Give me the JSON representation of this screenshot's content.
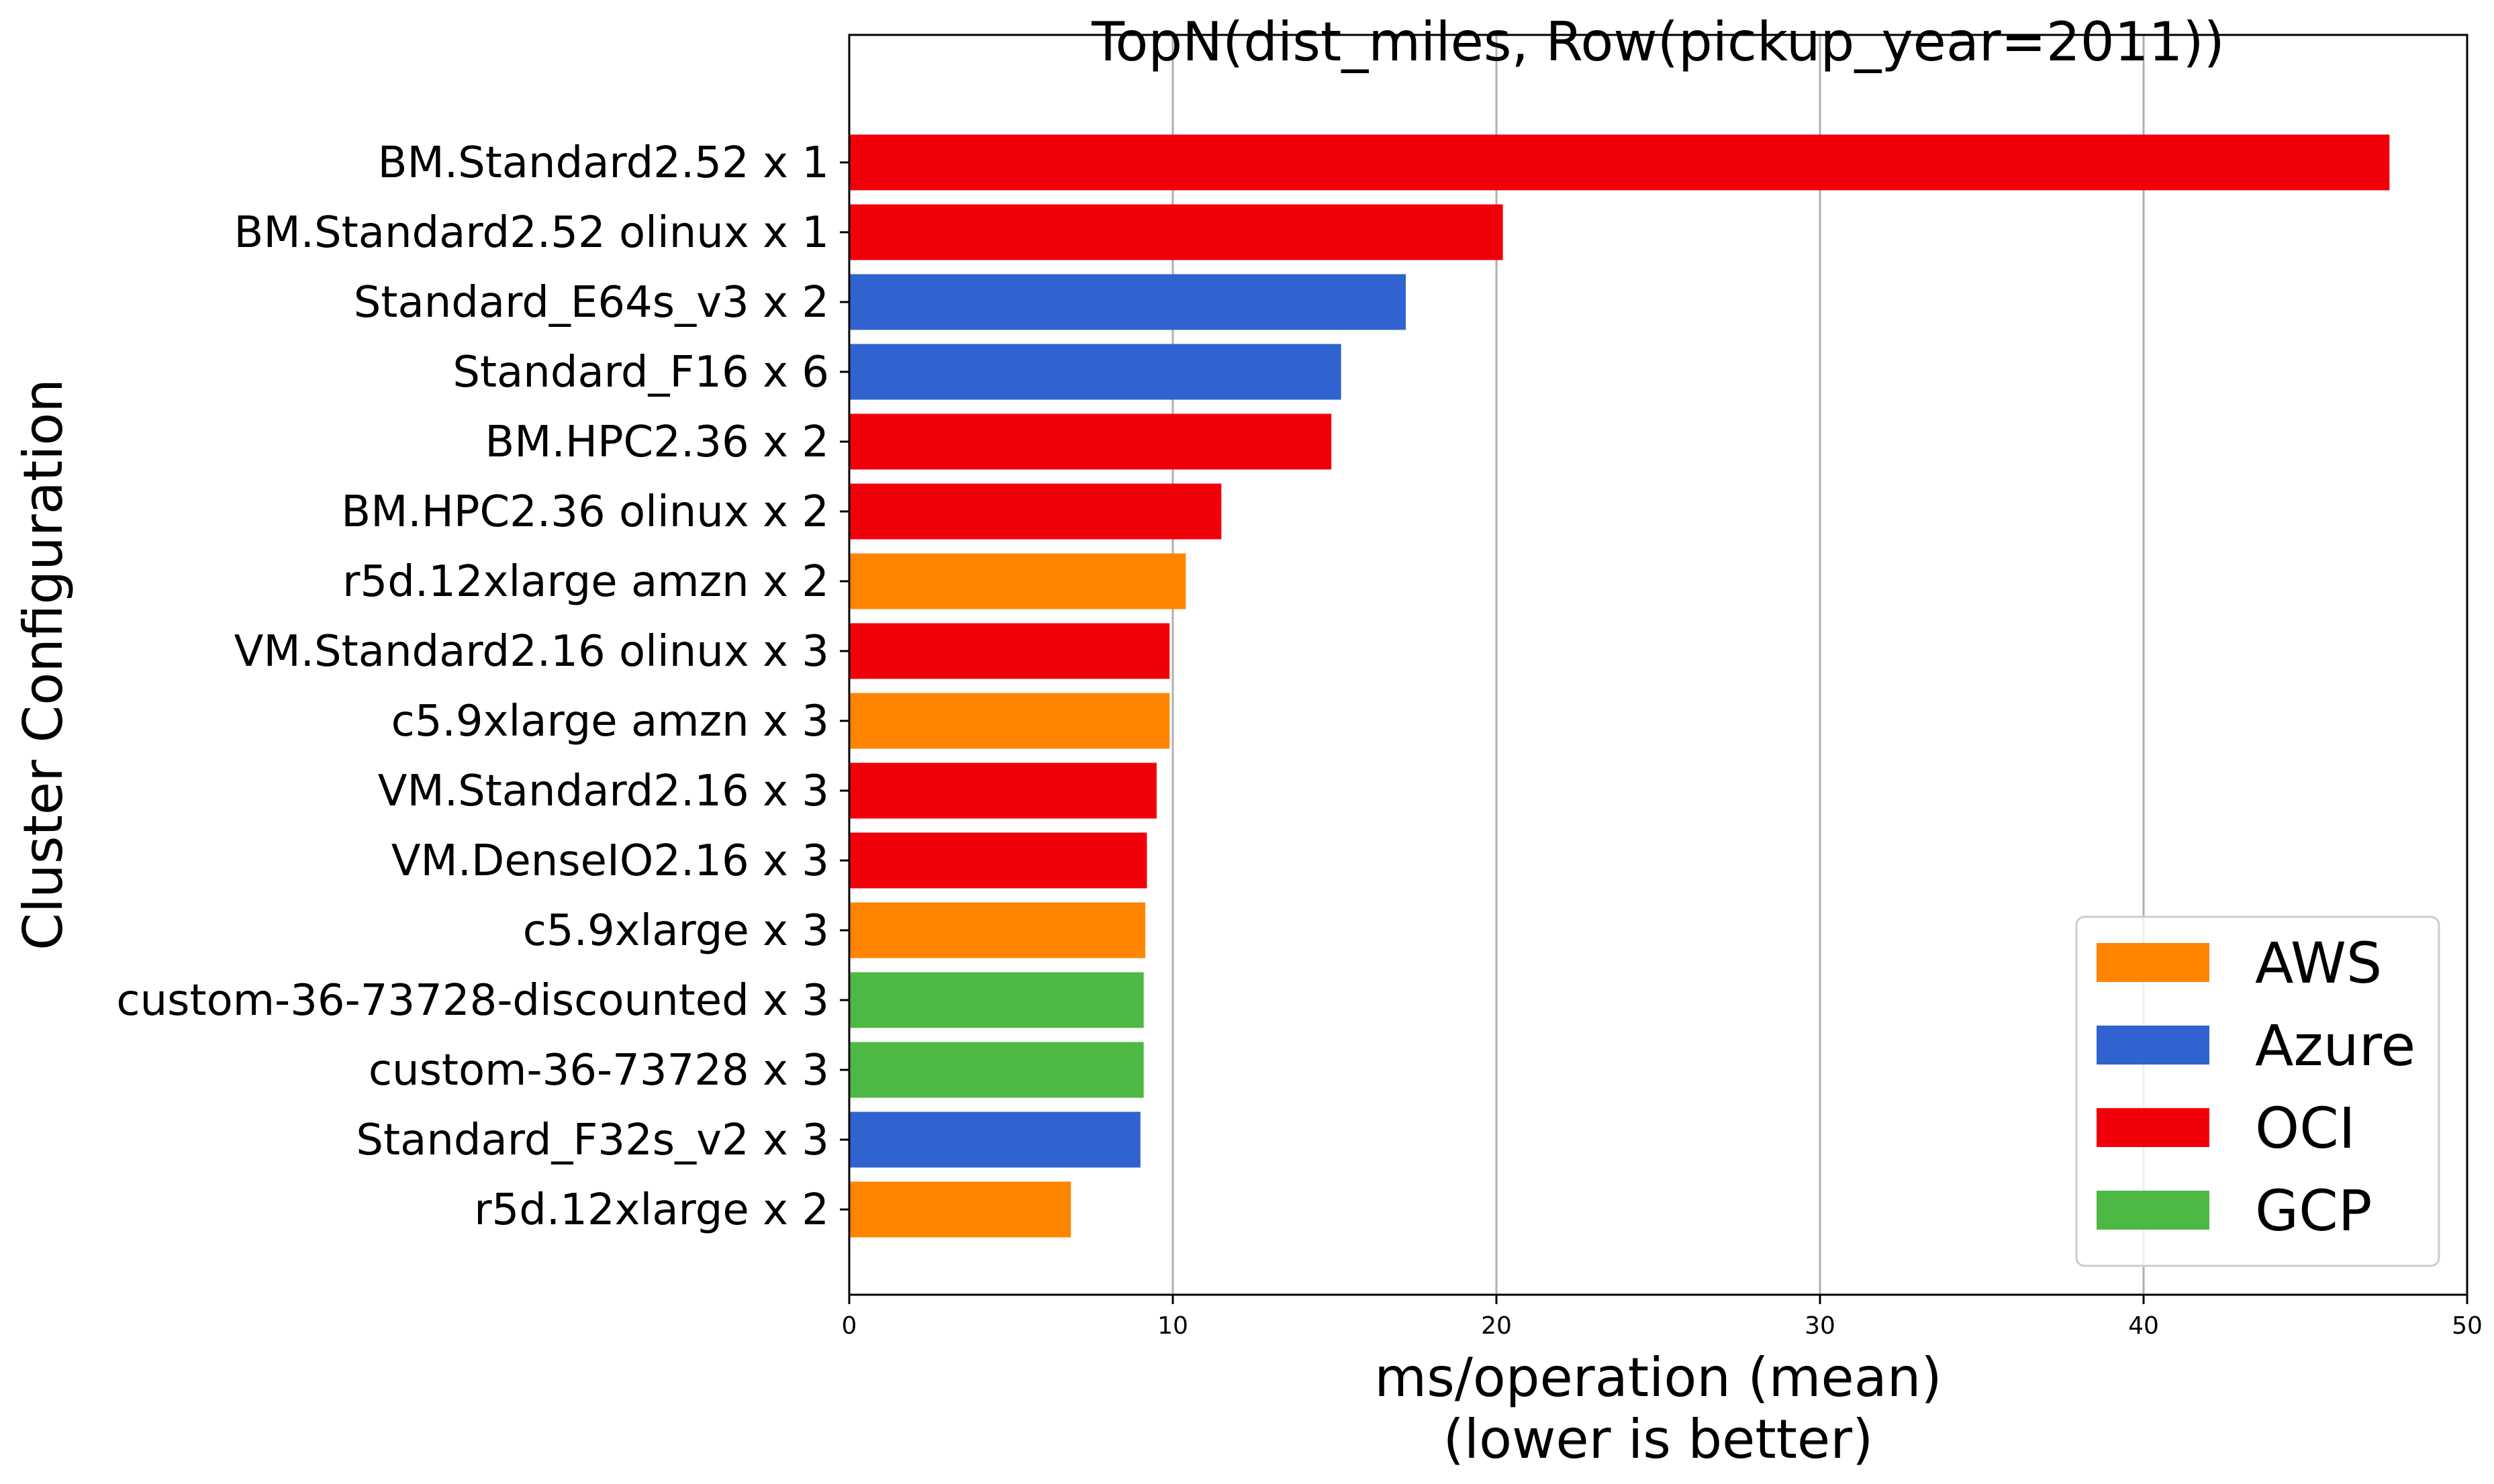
{
  "chart_data": {
    "type": "bar",
    "orientation": "horizontal",
    "title": "TopN(dist_miles, Row(pickup_year=2011))",
    "xlabel_line1": "ms/operation (mean)",
    "xlabel_line2": "(lower is better)",
    "ylabel": "Cluster Configuration",
    "xlim": [
      0,
      50
    ],
    "xticks": [
      "0",
      "10",
      "20",
      "30",
      "40",
      "50"
    ],
    "grid": "vertical",
    "legend_position": "lower-right",
    "categories": [
      "BM.Standard2.52 x 1",
      "BM.Standard2.52 olinux x 1",
      "Standard_E64s_v3 x 2",
      "Standard_F16 x 6",
      "BM.HPC2.36 x 2",
      "BM.HPC2.36 olinux x 2",
      "r5d.12xlarge amzn x 2",
      "VM.Standard2.16 olinux x 3",
      "c5.9xlarge amzn x 3",
      "VM.Standard2.16 x 3",
      "VM.DenseIO2.16 x 3",
      "c5.9xlarge x 3",
      "custom-36-73728-discounted x 3",
      "custom-36-73728 x 3",
      "Standard_F32s_v2 x 3",
      "r5d.12xlarge x 2"
    ],
    "values": [
      47.6,
      20.2,
      17.2,
      15.2,
      14.9,
      11.5,
      10.4,
      9.9,
      9.9,
      9.5,
      9.2,
      9.15,
      9.1,
      9.1,
      9.0,
      6.85
    ],
    "providers": [
      "OCI",
      "OCI",
      "Azure",
      "Azure",
      "OCI",
      "OCI",
      "AWS",
      "OCI",
      "AWS",
      "OCI",
      "OCI",
      "AWS",
      "GCP",
      "GCP",
      "Azure",
      "AWS"
    ],
    "legend": [
      {
        "name": "AWS",
        "color": "#ff8400"
      },
      {
        "name": "Azure",
        "color": "#3062d0"
      },
      {
        "name": "OCI",
        "color": "#f2000a"
      },
      {
        "name": "GCP",
        "color": "#4db843"
      }
    ]
  }
}
